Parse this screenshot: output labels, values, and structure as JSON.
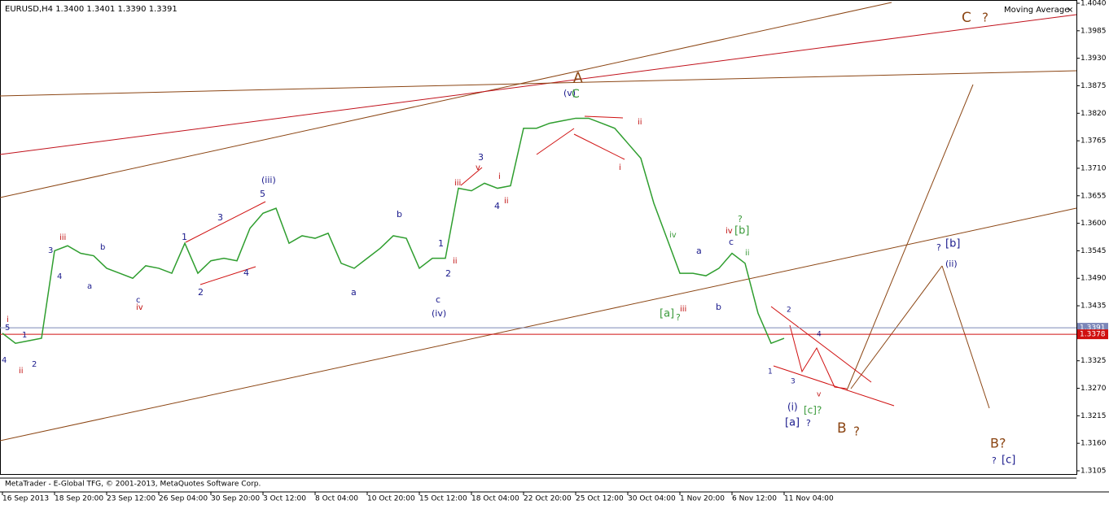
{
  "chart_data": {
    "type": "line",
    "title": "EURUSD,H4  1.3400 1.3401 1.3390 1.3391",
    "indicator": "Moving Average",
    "close_button": "×",
    "footer": "MetaTrader - E-Global TFG, © 2001-2013, MetaQuotes Software Corp.",
    "categories": [
      "16 Sep 2013",
      null,
      null,
      null,
      "18 Sep 20:00",
      null,
      null,
      null,
      "23 Sep 12:00",
      null,
      null,
      null,
      "26 Sep 04:00",
      null,
      null,
      null,
      "30 Sep 20:00",
      null,
      null,
      null,
      "3 Oct 12:00",
      null,
      null,
      null,
      "8 Oct 04:00",
      null,
      null,
      null,
      "10 Oct 20:00",
      null,
      null,
      null,
      "15 Oct 12:00",
      null,
      null,
      null,
      "18 Oct 04:00",
      null,
      null,
      null,
      "22 Oct 20:00",
      null,
      null,
      null,
      "25 Oct 12:00",
      null,
      null,
      null,
      "30 Oct 04:00",
      null,
      null,
      null,
      "1 Nov 20:00",
      null,
      null,
      null,
      "6 Nov 12:00",
      null,
      null,
      null,
      "11 Nov 04:00",
      null,
      null,
      null,
      null,
      null,
      null,
      null,
      null,
      null,
      null,
      null,
      null,
      null,
      null,
      null,
      null,
      null,
      null,
      null,
      null,
      null,
      null
    ],
    "series": [
      {
        "name": "EURUSD,H4",
        "color": "#2f9e2f",
        "values": [
          1.338,
          1.336,
          1.3365,
          1.337,
          1.3545,
          1.3555,
          1.354,
          1.3535,
          1.351,
          1.35,
          1.349,
          1.3515,
          1.351,
          1.35,
          1.356,
          1.35,
          1.3525,
          1.353,
          1.3525,
          1.359,
          1.362,
          1.363,
          1.356,
          1.3575,
          1.357,
          1.358,
          1.352,
          1.351,
          1.353,
          1.355,
          1.3575,
          1.357,
          1.351,
          1.353,
          1.353,
          1.367,
          1.3665,
          1.368,
          1.367,
          1.3675,
          1.379,
          1.379,
          1.38,
          1.3805,
          1.381,
          1.381,
          1.38,
          1.379,
          1.376,
          1.373,
          1.364,
          1.357,
          1.35,
          1.35,
          1.3495,
          1.351,
          1.354,
          1.352,
          1.342,
          1.336,
          1.337,
          null,
          null,
          null,
          null,
          null,
          null,
          null,
          null,
          null,
          null,
          null,
          null,
          null,
          null,
          null,
          null,
          null,
          null,
          null,
          null,
          null,
          null
        ]
      }
    ],
    "bid_line": {
      "value": 1.3391,
      "color": "#7b86b8"
    },
    "level_line": {
      "value": 1.3378,
      "color": "#d01010"
    },
    "ylim": [
      1.3105,
      1.404
    ],
    "yticks": [
      {
        "value": 1.3105,
        "label": "1.3105"
      },
      {
        "value": 1.316,
        "label": "1.3160"
      },
      {
        "value": 1.3215,
        "label": "1.3215"
      },
      {
        "value": 1.327,
        "label": "1.3270"
      },
      {
        "value": 1.3325,
        "label": "1.3325"
      },
      {
        "value": 1.338,
        "label": "1.3380"
      },
      {
        "value": 1.3435,
        "label": "1.3435"
      },
      {
        "value": 1.349,
        "label": "1.3490"
      },
      {
        "value": 1.3545,
        "label": "1.3545"
      },
      {
        "value": 1.36,
        "label": "1.3600"
      },
      {
        "value": 1.3655,
        "label": "1.3655"
      },
      {
        "value": 1.371,
        "label": "1.3710"
      },
      {
        "value": 1.3765,
        "label": "1.3765"
      },
      {
        "value": 1.382,
        "label": "1.3820"
      },
      {
        "value": 1.3875,
        "label": "1.3875"
      },
      {
        "value": 1.393,
        "label": "1.3930"
      },
      {
        "value": 1.3985,
        "label": "1.3985"
      },
      {
        "value": 1.404,
        "label": "1.4040"
      }
    ],
    "annotations": [
      "(v)",
      "C",
      "A",
      "C",
      "?",
      "(iii)",
      "5",
      "3",
      "1",
      "2",
      "4",
      "3",
      "v",
      "iii",
      "i",
      "4",
      "ii",
      "1",
      "2",
      "ii",
      "(iv)",
      "c",
      "b",
      "a",
      "[a]",
      "?",
      "iii",
      "[b]",
      "?",
      "iv",
      "c",
      "ii",
      "a",
      "b",
      "iv",
      "i",
      "ii",
      "(i)",
      "[a]",
      "?",
      "[c]?",
      "B",
      "?",
      "B?",
      "?",
      "[c]",
      "?",
      "[b]",
      "(ii)",
      "1",
      "2",
      "3",
      "4",
      "v",
      "i",
      "5",
      "1",
      "2",
      "4",
      "ii",
      "3",
      "4",
      "iii",
      "b",
      "a",
      "c",
      "iv"
    ]
  }
}
